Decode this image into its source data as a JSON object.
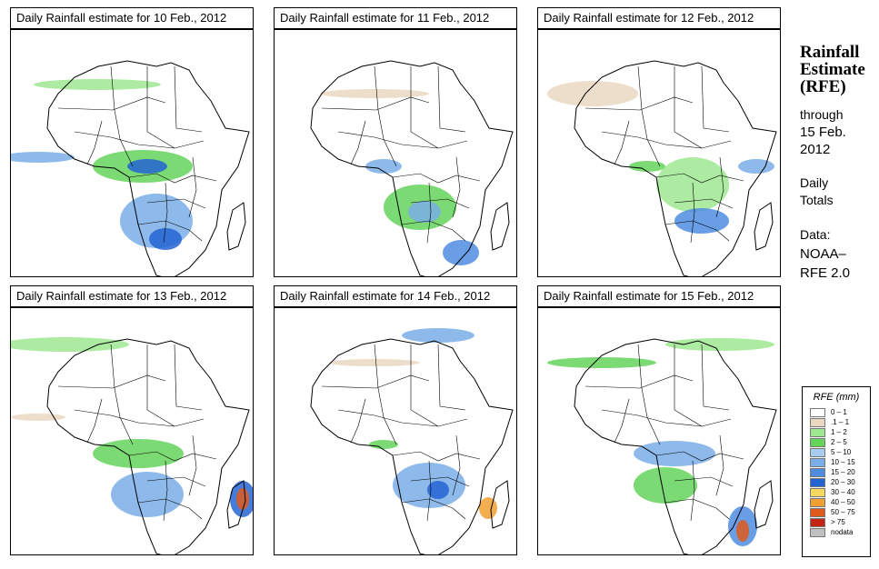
{
  "title_prefix": "Daily Rainfall estimate for",
  "panels": [
    {
      "date": "10 Feb., 2012",
      "title": "Daily Rainfall estimate for  10 Feb., 2012"
    },
    {
      "date": "11 Feb., 2012",
      "title": "Daily Rainfall estimate for  11 Feb., 2012"
    },
    {
      "date": "12 Feb., 2012",
      "title": "Daily Rainfall estimate for  12 Feb., 2012"
    },
    {
      "date": "13 Feb., 2012",
      "title": "Daily Rainfall estimate for  13 Feb., 2012"
    },
    {
      "date": "14 Feb., 2012",
      "title": "Daily Rainfall estimate for  14 Feb., 2012"
    },
    {
      "date": "15 Feb., 2012",
      "title": "Daily Rainfall estimate for  15 Feb., 2012"
    }
  ],
  "sidebar": {
    "title_line1": "Rainfall",
    "title_line2": "Estimate",
    "title_line3": "(RFE)",
    "through_label": "through",
    "through_date_line1": "15 Feb.",
    "through_date_line2": "2012",
    "daily_line1": "Daily",
    "daily_line2": "Totals",
    "data_label": "Data:",
    "source_line1": "NOAA–",
    "source_line2": "RFE 2.0"
  },
  "legend": {
    "title": "RFE (mm)",
    "items": [
      {
        "label": "0 – 1",
        "color": "#ffffff"
      },
      {
        "label": ".1 – 1",
        "color": "#ead8c2"
      },
      {
        "label": "1 – 2",
        "color": "#9ee890"
      },
      {
        "label": "2 – 5",
        "color": "#64d45a"
      },
      {
        "label": "5 – 10",
        "color": "#a6cdf0"
      },
      {
        "label": "10 – 15",
        "color": "#7aaee8"
      },
      {
        "label": "15 – 20",
        "color": "#4f8ce0"
      },
      {
        "label": "20 – 30",
        "color": "#2464d2"
      },
      {
        "label": "30 – 40",
        "color": "#f6d760"
      },
      {
        "label": "40 – 50",
        "color": "#f0a030"
      },
      {
        "label": "50 – 75",
        "color": "#e05a1c"
      },
      {
        "label": "> 75",
        "color": "#c42414"
      },
      {
        "label": "nodata",
        "color": "#c0c0c0"
      }
    ]
  }
}
